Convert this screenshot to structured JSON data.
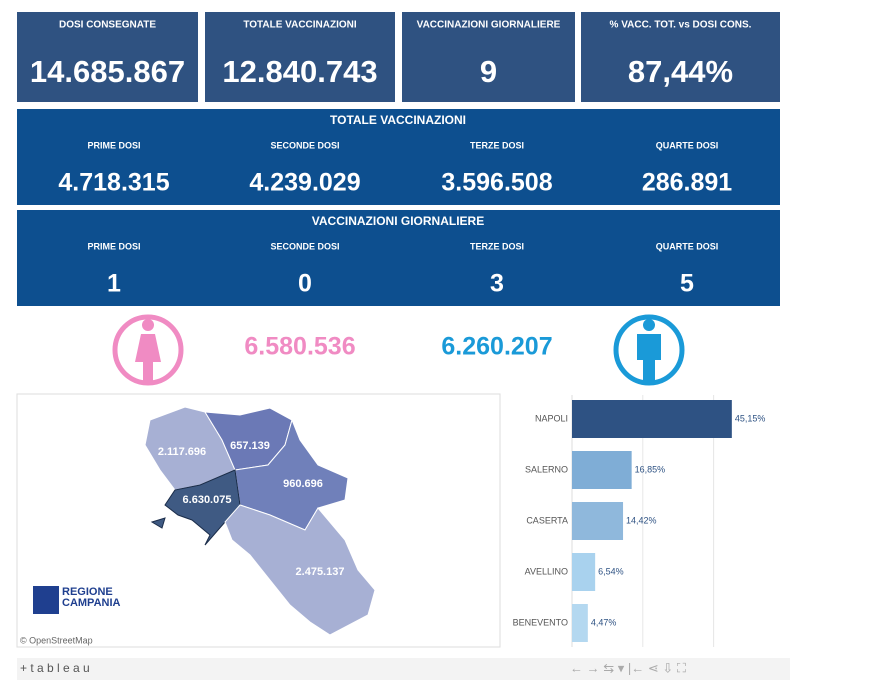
{
  "kpis": [
    {
      "label": "DOSI  CONSEGNATE",
      "value": "14.685.867"
    },
    {
      "label": "TOTALE VACCINAZIONI",
      "value": "12.840.743"
    },
    {
      "label": "VACCINAZIONI GIORNALIERE",
      "value": "9"
    },
    {
      "label": "% VACC. TOT. vs DOSI CONS.",
      "value": "87,44%"
    }
  ],
  "totale": {
    "title": "TOTALE VACCINAZIONI",
    "items": [
      {
        "label": "PRIME DOSI",
        "value": "4.718.315"
      },
      {
        "label": "SECONDE DOSI",
        "value": "4.239.029"
      },
      {
        "label": "TERZE DOSI",
        "value": "3.596.508"
      },
      {
        "label": "QUARTE DOSI",
        "value": "286.891"
      }
    ]
  },
  "giornaliere": {
    "title": "VACCINAZIONI GIORNALIERE",
    "items": [
      {
        "label": "PRIME DOSI",
        "value": "1"
      },
      {
        "label": "SECONDE DOSI",
        "value": "0"
      },
      {
        "label": "TERZE DOSI",
        "value": "3"
      },
      {
        "label": "QUARTE DOSI",
        "value": "5"
      }
    ]
  },
  "gender": {
    "female": "6.580.536",
    "male": "6.260.207"
  },
  "map": {
    "provinces": [
      {
        "name": "Caserta",
        "value": "2.117.696"
      },
      {
        "name": "Benevento",
        "value": "657.139"
      },
      {
        "name": "Avellino",
        "value": "960.696"
      },
      {
        "name": "Napoli",
        "value": "6.630.075"
      },
      {
        "name": "Salerno",
        "value": "2.475.137"
      }
    ],
    "logo": [
      "REGIONE",
      "CAMPANIA"
    ],
    "credit": "© OpenStreetMap"
  },
  "bar_chart": {
    "type": "bar",
    "categories": [
      "NAPOLI",
      "SALERNO",
      "CASERTA",
      "AVELLINO",
      "BENEVENTO"
    ],
    "values": [
      45.15,
      16.85,
      14.42,
      6.54,
      4.47
    ],
    "value_labels": [
      "45,15%",
      "16,85%",
      "14,42%",
      "6,54%",
      "4,47%"
    ],
    "colors": [
      "#2e5283",
      "#7fadd6",
      "#8fb8dc",
      "#a9d2ee",
      "#b4d8f0"
    ],
    "xlim": [
      0,
      50
    ],
    "xgrid": [
      20,
      40
    ]
  },
  "footer": {
    "logo": "+ t a b l e a u"
  }
}
